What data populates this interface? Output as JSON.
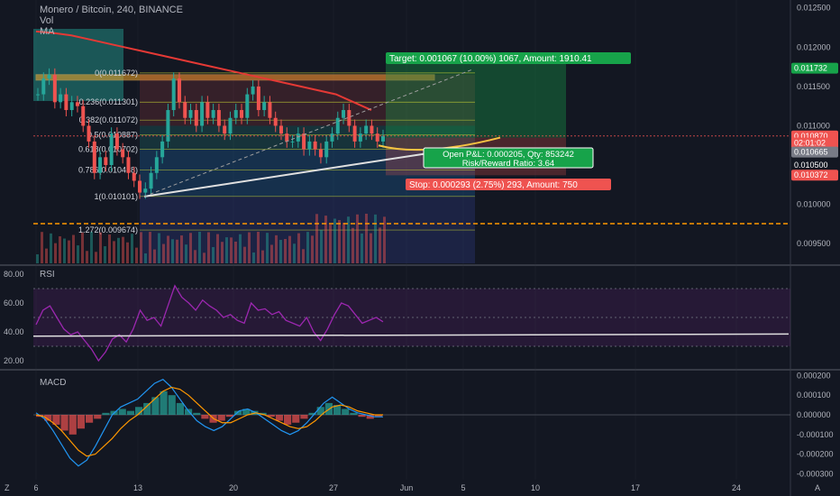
{
  "header": {
    "symbol": "Monero / Bitcoin, 240, BINANCE",
    "vol_label": "Vol",
    "ma_label": "MA"
  },
  "chart_data": [
    {
      "type": "line",
      "panel": "price",
      "ylim": [
        0.00925,
        0.0126
      ],
      "x_ticks": [
        "6",
        "13",
        "20",
        "27",
        "Jun",
        "5",
        "10",
        "17",
        "24"
      ],
      "y_ticks": [
        "0.012500",
        "0.012000",
        "0.011500",
        "0.011000",
        "0.010500",
        "0.010000",
        "0.009500"
      ],
      "price_badges": [
        {
          "label": "0.011732",
          "value": 0.011732,
          "color": "#17a34a"
        },
        {
          "label": "0.010870",
          "value": 0.01087,
          "color": "#ef5350"
        },
        {
          "label": "02:01:02",
          "value": 0.01078,
          "color": "#ef5350"
        },
        {
          "label": "0.010665",
          "value": 0.010665,
          "color": "#787b86"
        },
        {
          "label": "0.010500",
          "value": 0.0105,
          "color": "#131722"
        },
        {
          "label": "0.010372",
          "value": 0.010372,
          "color": "#ef5350"
        }
      ],
      "fib_levels": [
        {
          "label": "0(0.011672)",
          "value": 0.011672
        },
        {
          "label": "0.236(0.011301)",
          "value": 0.011301
        },
        {
          "label": "0.382(0.011072)",
          "value": 0.011072
        },
        {
          "label": "0.5(0.010887)",
          "value": 0.010887
        },
        {
          "label": "0.618(0.010702)",
          "value": 0.010702
        },
        {
          "label": "0.786(0.010438)",
          "value": 0.010438
        },
        {
          "label": "1(0.010101)",
          "value": 0.010101
        },
        {
          "label": "1.272(0.009674)",
          "value": 0.009674
        }
      ],
      "close": [
        0.0114,
        0.0116,
        0.01165,
        0.0113,
        0.0114,
        0.0112,
        0.0113,
        0.01125,
        0.011,
        0.0108,
        0.0104,
        0.0106,
        0.0105,
        0.0109,
        0.0107,
        0.0106,
        0.0104,
        0.0103,
        0.01015,
        0.0102,
        0.0104,
        0.0106,
        0.0108,
        0.0112,
        0.0116,
        0.0113,
        0.0111,
        0.0112,
        0.011,
        0.0113,
        0.0111,
        0.0112,
        0.011,
        0.0109,
        0.0111,
        0.0112,
        0.0111,
        0.0114,
        0.0115,
        0.0112,
        0.0113,
        0.0111,
        0.011,
        0.0109,
        0.0108,
        0.0108,
        0.0109,
        0.0107,
        0.0108,
        0.0107,
        0.0106,
        0.0108,
        0.0109,
        0.0111,
        0.0112,
        0.011,
        0.0108,
        0.0109,
        0.011,
        0.0109,
        0.0108,
        0.01087
      ],
      "ma_red": [
        0.0122,
        0.01218,
        0.01215,
        0.0121,
        0.01205,
        0.012,
        0.01195,
        0.0119,
        0.01185,
        0.0118,
        0.01175,
        0.0117,
        0.01165,
        0.0116,
        0.01155,
        0.0115,
        0.01145,
        0.0114,
        0.0113,
        0.0112
      ],
      "annotations": [
        {
          "label": "Target: 0.001067 (10.00%) 1067, Amount: 1910.41",
          "color": "#17a34a",
          "value": 0.01179
        },
        {
          "label": "Open P&L: 0.000205, Qty: 853242",
          "color": "#17a34a",
          "value": 0.01065
        },
        {
          "label": "Risk/Reward Ratio: 3.64",
          "color": "#17a34a",
          "value": 0.01065
        },
        {
          "label": "Stop: 0.000293 (2.75%) 293, Amount: 750",
          "color": "#ef5350",
          "value": 0.01025
        }
      ]
    },
    {
      "type": "line",
      "panel": "rsi",
      "title": "RSI",
      "ylim": [
        15,
        85
      ],
      "y_ticks": [
        "80.00",
        "60.00",
        "40.00",
        "20.00"
      ],
      "values": [
        45,
        55,
        58,
        50,
        42,
        38,
        40,
        34,
        28,
        20,
        26,
        35,
        38,
        33,
        42,
        55,
        48,
        50,
        44,
        58,
        72,
        64,
        60,
        55,
        62,
        58,
        55,
        50,
        52,
        48,
        46,
        60,
        55,
        56,
        52,
        54,
        48,
        46,
        44,
        50,
        40,
        34,
        42,
        52,
        60,
        58,
        52,
        46,
        48,
        50,
        47
      ]
    },
    {
      "type": "bar",
      "panel": "macd",
      "title": "MACD",
      "ylim": [
        -0.00033,
        0.00022
      ],
      "y_ticks": [
        "0.000200",
        "0.000100",
        "0.000000",
        "-0.000100",
        "-0.000200",
        "-0.000300"
      ],
      "histogram": [
        -1e-05,
        -3e-05,
        -5e-05,
        -8e-05,
        -0.0001,
        -7e-05,
        -4e-05,
        -2e-05,
        1e-05,
        2e-05,
        3e-05,
        2e-05,
        4e-05,
        6e-05,
        9e-05,
        0.00012,
        0.0001,
        6e-05,
        3e-05,
        1e-05,
        -2e-05,
        -4e-05,
        -3e-05,
        -1e-05,
        2e-05,
        3e-05,
        2e-05,
        1e-05,
        -1e-05,
        -3e-05,
        -5e-05,
        -4e-05,
        -2e-05,
        1e-05,
        4e-05,
        6e-05,
        5e-05,
        3e-05,
        1e-05,
        -1e-05,
        -2e-05,
        -1e-05
      ],
      "macd_line": [
        1e-05,
        -2e-05,
        -8e-05,
        -0.00015,
        -0.00022,
        -0.00026,
        -0.00023,
        -0.00016,
        -8e-05,
        0.0,
        4e-05,
        6e-05,
        8e-05,
        0.00012,
        0.00016,
        0.00018,
        0.00014,
        8e-05,
        2e-05,
        -3e-05,
        -6e-05,
        -8e-05,
        -6e-05,
        -2e-05,
        2e-05,
        3e-05,
        1e-05,
        -2e-05,
        -5e-05,
        -8e-05,
        -0.0001,
        -8e-05,
        -4e-05,
        1e-05,
        6e-05,
        9e-05,
        6e-05,
        3e-05,
        1e-05,
        0.0,
        -1e-05,
        -1e-05
      ],
      "signal_line": [
        0.0,
        -1e-05,
        -4e-05,
        -8e-05,
        -0.00013,
        -0.00018,
        -0.00021,
        -0.0002,
        -0.00016,
        -0.00012,
        -7e-05,
        -3e-05,
        0.0,
        4e-05,
        8e-05,
        0.00012,
        0.00014,
        0.00013,
        0.0001,
        6e-05,
        2e-05,
        -2e-05,
        -4e-05,
        -4e-05,
        -2e-05,
        0.0,
        1e-05,
        0.0,
        -2e-05,
        -4e-05,
        -6e-05,
        -7e-05,
        -6e-05,
        -3e-05,
        1e-05,
        4e-05,
        5e-05,
        4e-05,
        2e-05,
        1e-05,
        0.0,
        0.0
      ]
    }
  ],
  "ui": {
    "tz_label": "Z",
    "auto_label": "A"
  },
  "colors": {
    "bg": "#131722",
    "grid": "#2a2e39",
    "text": "#b2b5be",
    "up": "#26a69a",
    "down": "#ef5350",
    "rsi": "#9c27b0",
    "macd": "#2196f3",
    "signal": "#ff9800"
  }
}
